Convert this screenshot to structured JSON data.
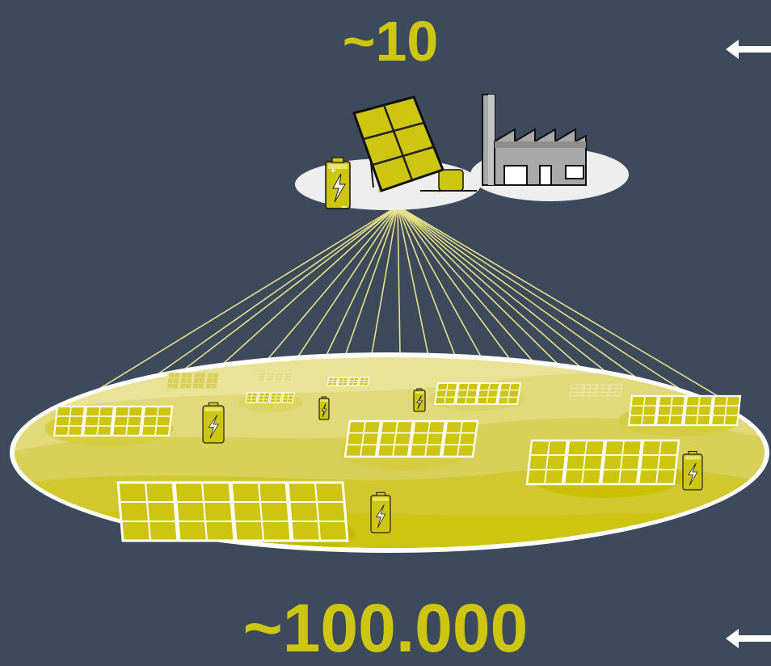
{
  "top_count": "~10",
  "bottom_count": "~100.000",
  "colors": {
    "background": "#3c4a5c",
    "accent_yellow": "#cdc50f",
    "light_yellow": "#e6e08a",
    "cloud_white": "#eeeeee",
    "factory_gray": "#a9a9a9"
  },
  "icons": [
    "solar-panel-icon",
    "battery-icon",
    "factory-icon",
    "left-arrow-icon"
  ]
}
